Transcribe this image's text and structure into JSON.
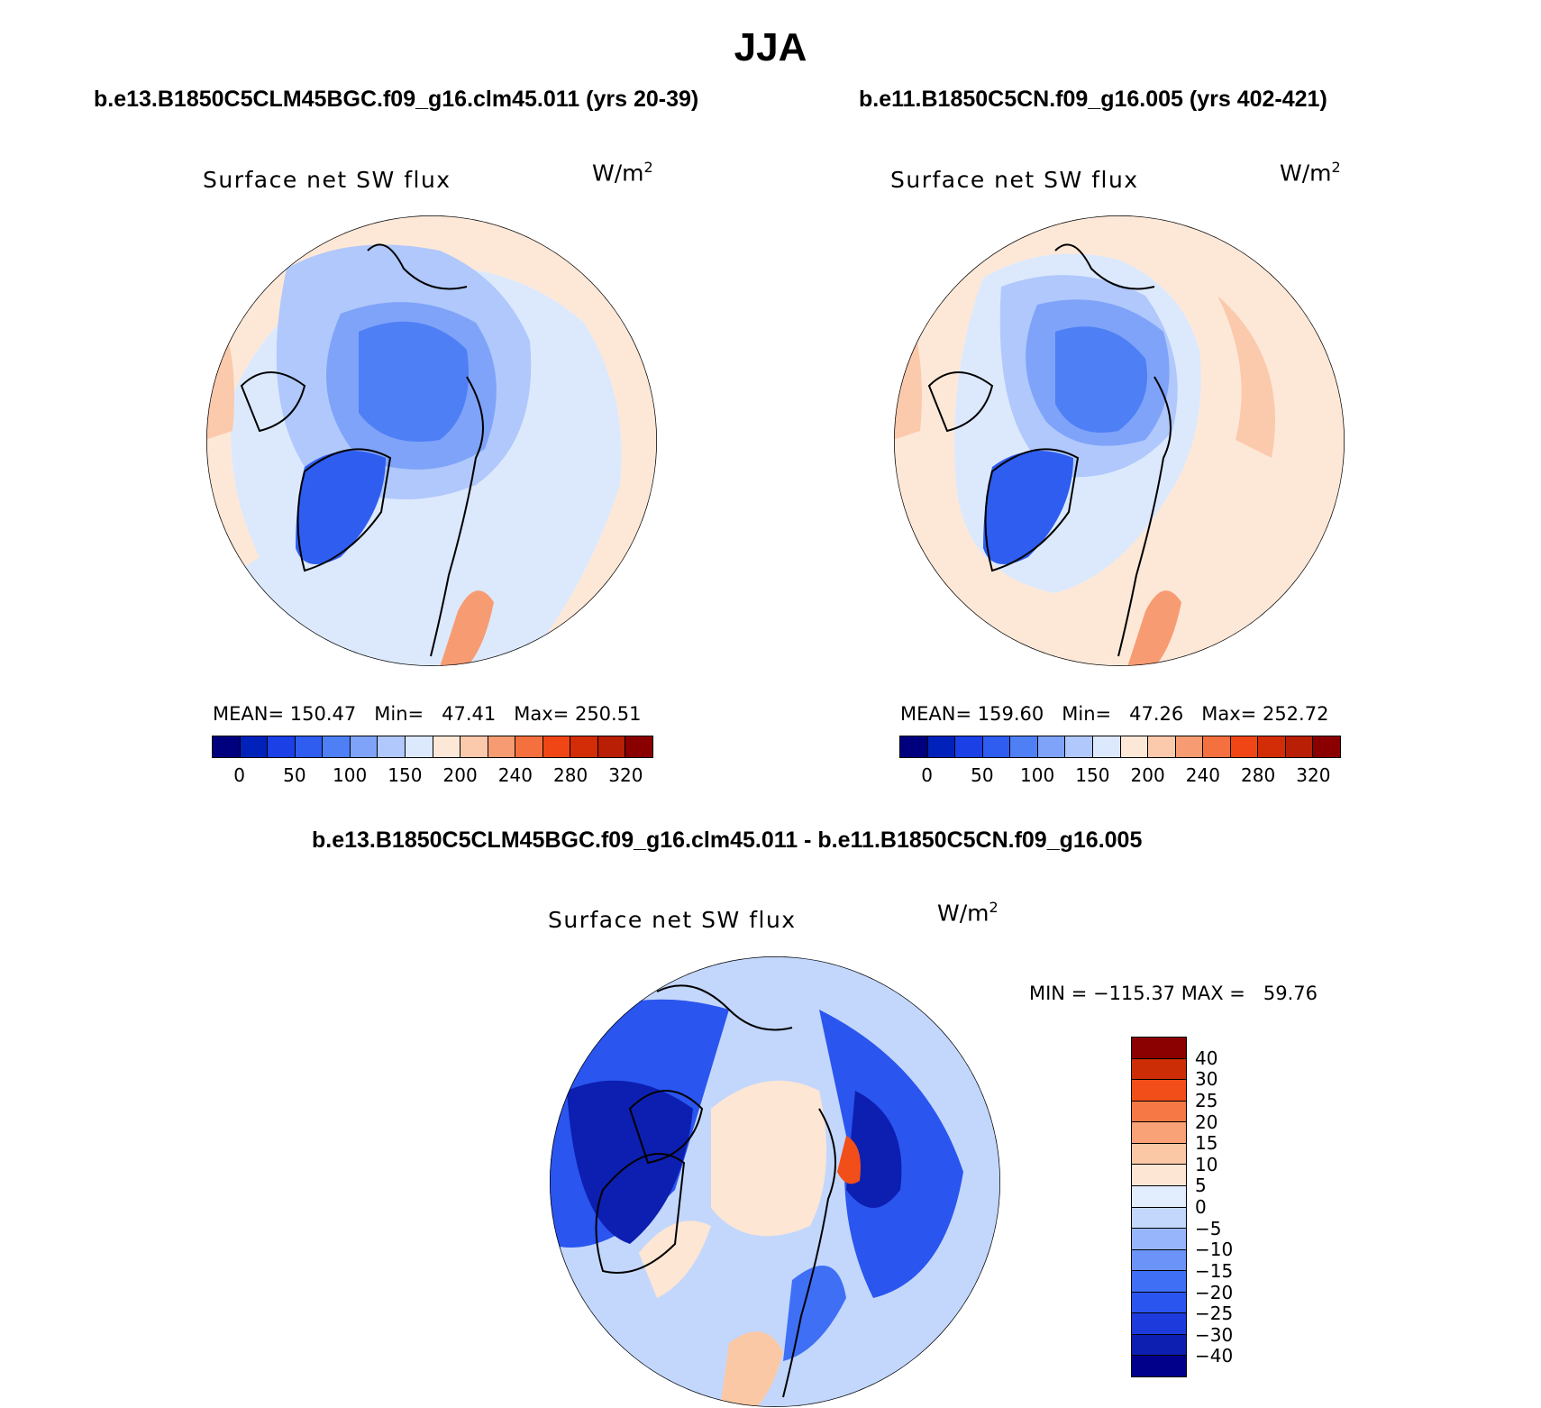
{
  "title": "JJA",
  "variable_label": "Surface net SW flux",
  "units_base": "W/m",
  "units_exp": "2",
  "palette": {
    "abs": [
      "#00007f",
      "#0022bb",
      "#1a40e6",
      "#2e5df0",
      "#4e7ff5",
      "#7ea3f9",
      "#b0c8fb",
      "#dce9fd",
      "#fde8d8",
      "#fbc9ac",
      "#f79c72",
      "#f5703f",
      "#f04616",
      "#d32d08",
      "#b81f04",
      "#8a0000"
    ],
    "diff": [
      "#00008a",
      "#0d1fb0",
      "#1d3bdd",
      "#2a55ef",
      "#3f6ff5",
      "#6b93f8",
      "#97b5fb",
      "#c3d7fd",
      "#e2edfd",
      "#fde6d4",
      "#fbc8a6",
      "#f9a177",
      "#f67845",
      "#f24e1a",
      "#cc2d06",
      "#8b0000"
    ]
  },
  "panels": {
    "left": {
      "case_title": "b.e13.B1850C5CLM45BGC.f09_g16.clm45.011 (yrs 20-39)",
      "stats": "MEAN= 150.47   Min=   47.41   Max= 250.51",
      "colorbar_ticks": [
        "0",
        "50",
        "100",
        "150",
        "200",
        "240",
        "280",
        "320"
      ]
    },
    "right": {
      "case_title": "b.e11.B1850C5CN.f09_g16.005 (yrs 402-421)",
      "stats": "MEAN= 159.60   Min=   47.26   Max= 252.72",
      "colorbar_ticks": [
        "0",
        "50",
        "100",
        "150",
        "200",
        "240",
        "280",
        "320"
      ]
    },
    "diff": {
      "case_title": "b.e13.B1850C5CLM45BGC.f09_g16.clm45.011 - b.e11.B1850C5CN.f09_g16.005",
      "stats": "MIN = −115.37 MAX =   59.76",
      "colorbar_ticks": [
        "40",
        "30",
        "25",
        "20",
        "15",
        "10",
        "5",
        "0",
        "−5",
        "−10",
        "−15",
        "−20",
        "−25",
        "−30",
        "−40"
      ]
    }
  }
}
